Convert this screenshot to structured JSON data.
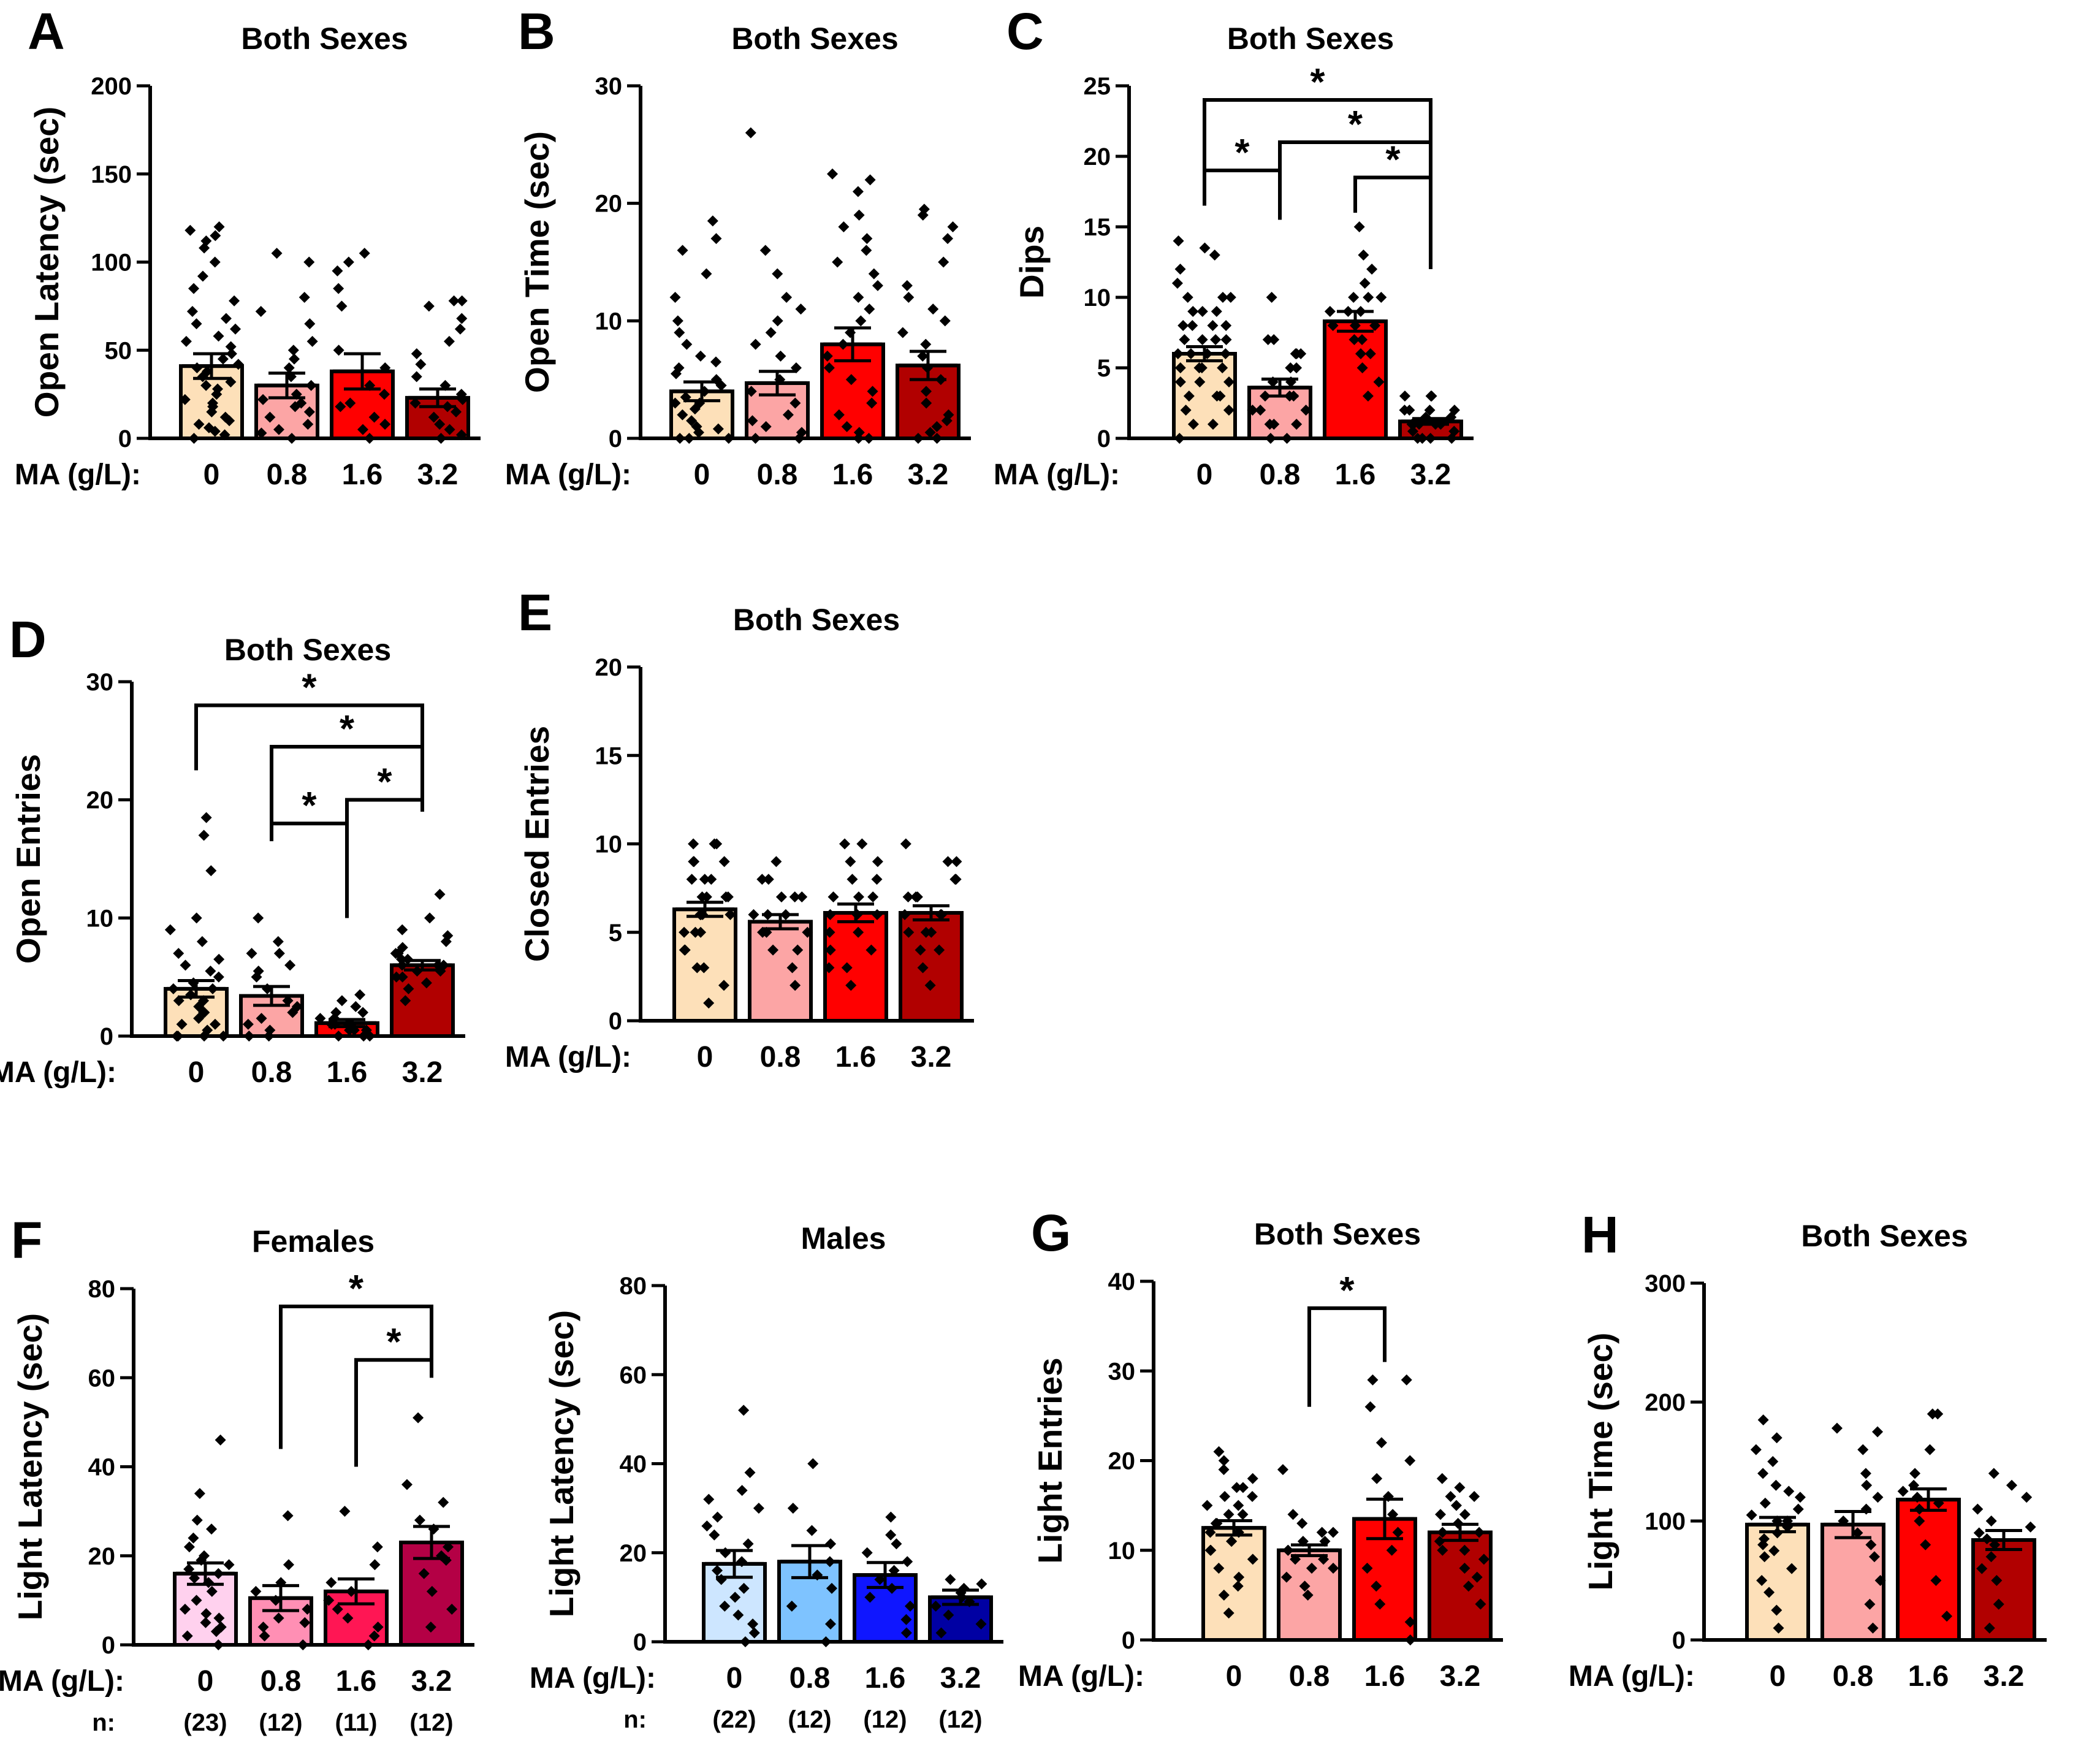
{
  "figure": {
    "x_prefix": "MA (g/L):",
    "n_prefix": "n:",
    "colors": {
      "warm": [
        "#fde0b9",
        "#fca5a5",
        "#ff0000",
        "#b10000"
      ],
      "females": [
        "#ffd1ee",
        "#ff8fb4",
        "#ff1654",
        "#b40045"
      ],
      "males": [
        "#cde6ff",
        "#7ec3ff",
        "#0f16ff",
        "#0000a3"
      ]
    }
  },
  "chart_data": [
    {
      "id": "A",
      "panel_label": "A",
      "type": "bar",
      "title": "Both Sexes",
      "ylabel": "Open Latency (sec)",
      "ylim": [
        0,
        200
      ],
      "yticks": [
        0,
        50,
        100,
        150,
        200
      ],
      "categories": [
        "0",
        "0.8",
        "1.6",
        "3.2"
      ],
      "palette": "warm",
      "values": [
        41,
        30,
        38,
        23
      ],
      "sem": [
        7,
        7,
        10,
        5
      ],
      "points": [
        [
          0,
          2,
          4,
          6,
          8,
          10,
          12,
          15,
          18,
          20,
          22,
          25,
          28,
          30,
          32,
          35,
          38,
          40,
          42,
          45,
          48,
          52,
          55,
          58,
          62,
          65,
          68,
          72,
          78,
          85,
          92,
          100,
          108,
          112,
          115,
          118,
          120
        ],
        [
          0,
          3,
          5,
          8,
          12,
          15,
          18,
          20,
          22,
          25,
          30,
          35,
          40,
          45,
          50,
          55,
          65,
          72,
          80,
          100,
          105
        ],
        [
          0,
          5,
          8,
          12,
          18,
          20,
          25,
          30,
          40,
          50,
          75,
          85,
          95,
          100,
          105
        ],
        [
          0,
          2,
          5,
          8,
          12,
          15,
          18,
          20,
          22,
          25,
          30,
          35,
          42,
          48,
          55,
          62,
          68,
          75,
          78,
          78
        ]
      ],
      "brackets": []
    },
    {
      "id": "B",
      "panel_label": "B",
      "type": "bar",
      "title": "Both Sexes",
      "ylabel": "Open Time (sec)",
      "ylim": [
        0,
        30
      ],
      "yticks": [
        0,
        10,
        20,
        30
      ],
      "categories": [
        "0",
        "0.8",
        "1.6",
        "3.2"
      ],
      "palette": "warm",
      "values": [
        4,
        4.7,
        8,
        6.2
      ],
      "sem": [
        0.8,
        1,
        1.4,
        1.2
      ],
      "points": [
        [
          0,
          0,
          0,
          0.5,
          0.8,
          1,
          1.5,
          2,
          2.5,
          3,
          3,
          3.5,
          4,
          4.5,
          5,
          5.5,
          6,
          6.5,
          7,
          8,
          9,
          10,
          12,
          14,
          16,
          17,
          18.5
        ],
        [
          0,
          0,
          0.5,
          1,
          1.5,
          2,
          3,
          4,
          5,
          6,
          7,
          8,
          9,
          10,
          11,
          12,
          14,
          16,
          26
        ],
        [
          0,
          0,
          0.5,
          1,
          2,
          3,
          4,
          5,
          6,
          7,
          8,
          9,
          10,
          11,
          12,
          13,
          14,
          15,
          16,
          17,
          18,
          19,
          21,
          22,
          22.5
        ],
        [
          0,
          0,
          0.5,
          1,
          1.5,
          2,
          3,
          4,
          5,
          6,
          7,
          8,
          9,
          10,
          11,
          12,
          13,
          15,
          17,
          18,
          19,
          19.5
        ]
      ],
      "brackets": []
    },
    {
      "id": "C",
      "panel_label": "C",
      "type": "bar",
      "title": "Both Sexes",
      "ylabel": "Dips",
      "ylim": [
        0,
        25
      ],
      "yticks": [
        0,
        5,
        10,
        15,
        20,
        25
      ],
      "categories": [
        "0",
        "0.8",
        "1.6",
        "3.2"
      ],
      "palette": "warm",
      "values": [
        6,
        3.6,
        8.3,
        1.2
      ],
      "sem": [
        0.5,
        0.6,
        0.7,
        0.2
      ],
      "points": [
        [
          0,
          1,
          1,
          2,
          2,
          3,
          3,
          3,
          4,
          4,
          4,
          5,
          5,
          5,
          5,
          6,
          6,
          6,
          6,
          7,
          7,
          7,
          7,
          8,
          8,
          8,
          8,
          9,
          9,
          9,
          10,
          10,
          10,
          11,
          12,
          13,
          13.5,
          14
        ],
        [
          0,
          0,
          1,
          1,
          1,
          2,
          2,
          2,
          3,
          3,
          3,
          4,
          4,
          5,
          5,
          6,
          6,
          6,
          7,
          7,
          10
        ],
        [
          3,
          4,
          5,
          6,
          6,
          7,
          7,
          8,
          8,
          8,
          9,
          9,
          9,
          10,
          10,
          10,
          11,
          12,
          13,
          15
        ],
        [
          0,
          0,
          0,
          0,
          0.5,
          0.5,
          1,
          1,
          1,
          1,
          1,
          1.5,
          1.5,
          2,
          2,
          2,
          2,
          3,
          3,
          3
        ]
      ],
      "brackets": [
        {
          "from": 0,
          "to": 3,
          "h": 24,
          "label": "*",
          "left_drop": 19,
          "right_drop": 12
        },
        {
          "from": 1,
          "to": 3,
          "h": 21,
          "label": "*",
          "left_drop": 15.5,
          "right_drop": 12
        },
        {
          "from": 0,
          "to": 1,
          "h": 19,
          "label": "*",
          "left_drop": 16.5,
          "right_drop": 15.5
        },
        {
          "from": 2,
          "to": 3,
          "h": 18.5,
          "label": "*",
          "left_drop": 16,
          "right_drop": 12
        }
      ]
    },
    {
      "id": "D",
      "panel_label": "D",
      "type": "bar",
      "title": "Both Sexes",
      "ylabel": "Open Entries",
      "ylim": [
        0,
        30
      ],
      "yticks": [
        0,
        10,
        20,
        30
      ],
      "categories": [
        "0",
        "0.8",
        "1.6",
        "3.2"
      ],
      "palette": "warm",
      "values": [
        4,
        3.4,
        1.1,
        6
      ],
      "sem": [
        0.7,
        0.8,
        0.3,
        0.4
      ],
      "points": [
        [
          0,
          0,
          0,
          0,
          0.5,
          1,
          1,
          1.5,
          2,
          2,
          2.5,
          3,
          3,
          3.5,
          4,
          4,
          4.5,
          5,
          5.5,
          6,
          6.5,
          7,
          8,
          9,
          10,
          14,
          17,
          18.5
        ],
        [
          0,
          0,
          0.5,
          1,
          1.5,
          2,
          2.5,
          3,
          4,
          5,
          5.5,
          6,
          7,
          7,
          8,
          10
        ],
        [
          0,
          0,
          0,
          0.5,
          0.5,
          0.5,
          1,
          1,
          1,
          1,
          1.5,
          1.5,
          2,
          2,
          2.5,
          3,
          3.5
        ],
        [
          3,
          4,
          4.5,
          5,
          5,
          5.5,
          5.5,
          6,
          6,
          6,
          6.5,
          6.5,
          7,
          7,
          7.5,
          8,
          8.5,
          9,
          10,
          12
        ]
      ],
      "brackets": [
        {
          "from": 0,
          "to": 3,
          "h": 28,
          "label": "*",
          "left_drop": 22.5,
          "right_drop": 19
        },
        {
          "from": 1,
          "to": 3,
          "h": 24.5,
          "label": "*",
          "left_drop": 17.5,
          "right_drop": 19
        },
        {
          "from": 2,
          "to": 3,
          "h": 20,
          "label": "*",
          "left_drop": 10,
          "right_drop": 19
        },
        {
          "from": 1,
          "to": 2,
          "h": 18,
          "label": "*",
          "left_drop": 16.5,
          "right_drop": 10
        }
      ]
    },
    {
      "id": "E",
      "panel_label": "E",
      "type": "bar",
      "title": "Both Sexes",
      "ylabel": "Closed Entries",
      "ylim": [
        0,
        20
      ],
      "yticks": [
        0,
        5,
        10,
        15,
        20
      ],
      "categories": [
        "0",
        "0.8",
        "1.6",
        "3.2"
      ],
      "palette": "warm",
      "values": [
        6.3,
        5.6,
        6.1,
        6.1
      ],
      "sem": [
        0.4,
        0.4,
        0.5,
        0.4
      ],
      "points": [
        [
          1,
          2,
          3,
          3,
          4,
          4,
          5,
          5,
          5,
          6,
          6,
          6,
          6,
          7,
          7,
          7,
          7,
          8,
          8,
          8,
          9,
          9,
          9,
          10,
          10,
          10
        ],
        [
          2,
          3,
          4,
          4,
          5,
          5,
          5,
          6,
          6,
          6,
          7,
          7,
          7,
          8,
          8,
          9
        ],
        [
          2,
          3,
          3,
          4,
          4,
          5,
          5,
          6,
          6,
          6,
          7,
          7,
          7,
          8,
          8,
          9,
          9,
          10,
          10
        ],
        [
          2,
          3,
          4,
          4,
          5,
          5,
          5,
          6,
          6,
          6,
          7,
          7,
          7,
          8,
          8,
          9,
          9,
          10
        ]
      ],
      "brackets": []
    },
    {
      "id": "F1",
      "panel_label": "F",
      "type": "bar",
      "title": "Females",
      "ylabel": "Light Latency (sec)",
      "ylim": [
        0,
        80
      ],
      "yticks": [
        0,
        20,
        40,
        60,
        80
      ],
      "categories": [
        "0",
        "0.8",
        "1.6",
        "3.2"
      ],
      "palette": "females",
      "values": [
        16,
        10.5,
        12,
        23
      ],
      "sem": [
        2.4,
        2.8,
        2.8,
        3.6
      ],
      "n": [
        "(23)",
        "(12)",
        "(11)",
        "(12)"
      ],
      "points": [
        [
          0,
          2,
          3,
          4,
          5,
          6,
          7,
          8,
          10,
          12,
          14,
          15,
          16,
          17,
          18,
          19,
          20,
          22,
          24,
          26,
          28,
          34,
          46
        ],
        [
          0,
          2,
          4,
          5,
          6,
          8,
          10,
          12,
          14,
          18,
          29
        ],
        [
          0,
          2,
          4,
          6,
          8,
          10,
          12,
          14,
          18,
          22,
          30
        ],
        [
          4,
          8,
          12,
          16,
          19,
          20,
          22,
          26,
          28,
          32,
          36,
          51
        ]
      ],
      "brackets": [
        {
          "from": 1,
          "to": 3,
          "h": 76,
          "label": "*",
          "left_drop": 44,
          "right_drop": 60
        },
        {
          "from": 2,
          "to": 3,
          "h": 64,
          "label": "*",
          "left_drop": 40,
          "right_drop": 60
        }
      ]
    },
    {
      "id": "F2",
      "panel_label": "",
      "type": "bar",
      "title": "Males",
      "ylabel": "Light Latency (sec)",
      "ylim": [
        0,
        80
      ],
      "yticks": [
        0,
        20,
        40,
        60,
        80
      ],
      "categories": [
        "0",
        "0.8",
        "1.6",
        "3.2"
      ],
      "palette": "males",
      "values": [
        17.5,
        18,
        15,
        10
      ],
      "sem": [
        3,
        3.6,
        2.8,
        1.6
      ],
      "n": [
        "(22)",
        "(12)",
        "(12)",
        "(12)"
      ],
      "points": [
        [
          0,
          2,
          4,
          6,
          8,
          10,
          12,
          14,
          16,
          18,
          20,
          22,
          24,
          26,
          28,
          30,
          32,
          34,
          38,
          52
        ],
        [
          0,
          4,
          8,
          12,
          15,
          18,
          22,
          25,
          30,
          40
        ],
        [
          2,
          5,
          8,
          10,
          12,
          14,
          16,
          18,
          20,
          22,
          24,
          28
        ],
        [
          2,
          4,
          6,
          8,
          9,
          10,
          11,
          12,
          13,
          14
        ]
      ],
      "brackets": []
    },
    {
      "id": "G",
      "panel_label": "G",
      "type": "bar",
      "title": "Both Sexes",
      "ylabel": "Light Entries",
      "ylim": [
        0,
        40
      ],
      "yticks": [
        0,
        10,
        20,
        30,
        40
      ],
      "categories": [
        "0",
        "0.8",
        "1.6",
        "3.2"
      ],
      "palette": "warm",
      "values": [
        12.5,
        10,
        13.5,
        12
      ],
      "sem": [
        0.8,
        0.6,
        2.2,
        0.9
      ],
      "points": [
        [
          3,
          5,
          6,
          7,
          8,
          9,
          10,
          10,
          11,
          11,
          12,
          12,
          13,
          13,
          14,
          14,
          15,
          15,
          16,
          16,
          17,
          17,
          18,
          19,
          20,
          21
        ],
        [
          5,
          6,
          7,
          8,
          8,
          9,
          9,
          10,
          10,
          11,
          11,
          12,
          12,
          13,
          14,
          19
        ],
        [
          0,
          2,
          4,
          6,
          8,
          10,
          12,
          14,
          16,
          18,
          20,
          22,
          26,
          29,
          29
        ],
        [
          4,
          6,
          7,
          8,
          9,
          10,
          10,
          11,
          12,
          12,
          13,
          14,
          14,
          15,
          16,
          16,
          17,
          18
        ]
      ],
      "brackets": [
        {
          "from": 1,
          "to": 2,
          "h": 37,
          "label": "*",
          "left_drop": 26,
          "right_drop": 31
        }
      ]
    },
    {
      "id": "H",
      "panel_label": "H",
      "type": "bar",
      "title": "Both Sexes",
      "ylabel": "Light Time (sec)",
      "ylim": [
        0,
        300
      ],
      "yticks": [
        0,
        100,
        200,
        300
      ],
      "categories": [
        "0",
        "0.8",
        "1.6",
        "3.2"
      ],
      "palette": "warm",
      "values": [
        97,
        97,
        118,
        84
      ],
      "sem": [
        6,
        11,
        9,
        8
      ],
      "points": [
        [
          10,
          25,
          40,
          50,
          60,
          70,
          75,
          80,
          85,
          90,
          95,
          100,
          100,
          105,
          110,
          115,
          120,
          125,
          130,
          140,
          150,
          160,
          170,
          185
        ],
        [
          10,
          30,
          50,
          70,
          80,
          90,
          100,
          110,
          120,
          130,
          140,
          160,
          175,
          178
        ],
        [
          20,
          50,
          80,
          100,
          110,
          115,
          120,
          125,
          130,
          140,
          160,
          190,
          190
        ],
        [
          10,
          30,
          50,
          60,
          70,
          80,
          85,
          90,
          95,
          100,
          110,
          120,
          130,
          140
        ]
      ],
      "brackets": []
    }
  ]
}
